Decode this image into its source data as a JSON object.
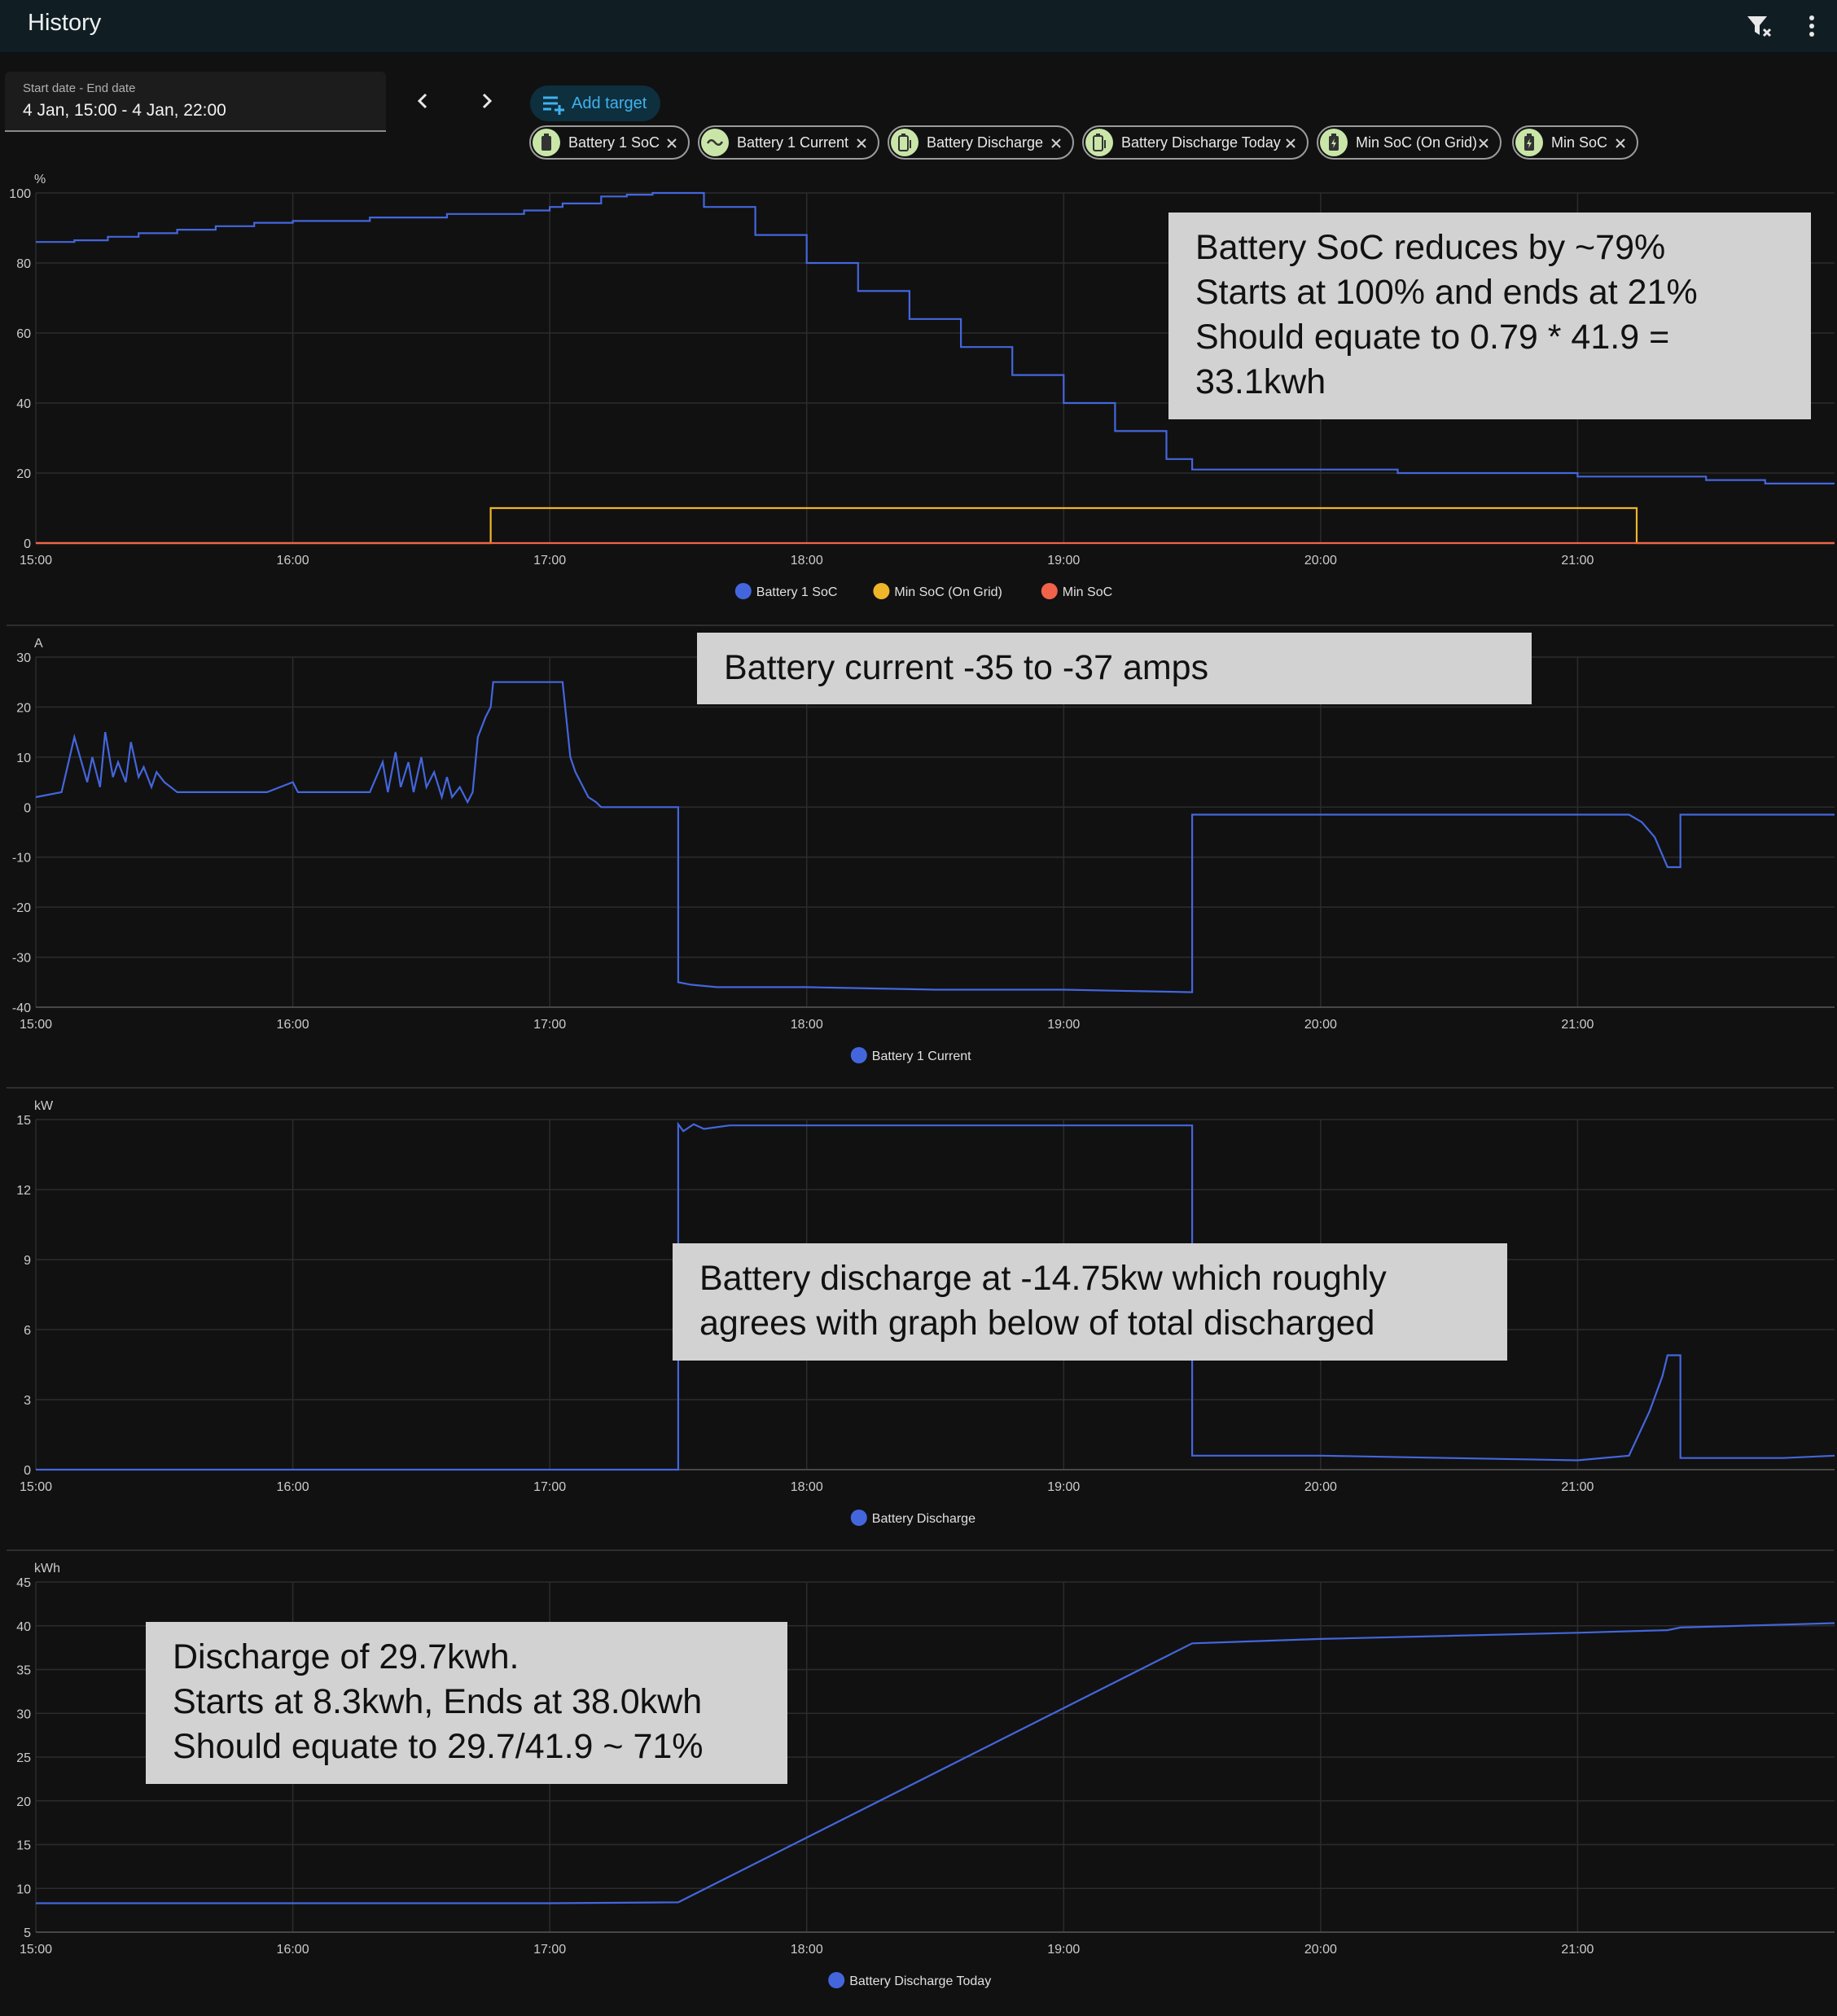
{
  "header": {
    "title": "History"
  },
  "date_picker": {
    "label": "Start date - End date",
    "value": "4 Jan, 15:00 - 4 Jan, 22:00"
  },
  "add_target": {
    "label": "Add target"
  },
  "targets": [
    {
      "label": "Battery 1 SoC",
      "icon": "battery-icon"
    },
    {
      "label": "Battery 1 Current",
      "icon": "current-wave-icon"
    },
    {
      "label": "Battery Discharge",
      "icon": "battery-discharge-icon"
    },
    {
      "label": "Battery Discharge Today",
      "icon": "battery-discharge-icon"
    },
    {
      "label": "Min SoC (On Grid)",
      "icon": "battery-charging-icon"
    },
    {
      "label": "Min SoC",
      "icon": "battery-charging-icon"
    }
  ],
  "colors": {
    "blue": "#4466dd",
    "yellow": "#f0b429",
    "red": "#f0634a",
    "grid": "#2c2c2c",
    "axis": "#cccccc"
  },
  "x_ticks": [
    "15:00",
    "16:00",
    "17:00",
    "18:00",
    "19:00",
    "20:00",
    "21:00"
  ],
  "notes": [
    "Battery SoC reduces by ~79%\nStarts at 100% and ends at 21%\nShould equate to 0.79 * 41.9 =\n33.1kwh",
    "Battery current  -35 to -37 amps",
    "Battery discharge at  -14.75kw which roughly\nagrees with graph below of total discharged",
    "Discharge of 29.7kwh.\nStarts at 8.3kwh, Ends at 38.0kwh\nShould equate to 29.7/41.9 ~ 71%"
  ],
  "chart_data": [
    {
      "type": "line",
      "unit": "%",
      "ylim": [
        0,
        100
      ],
      "yticks": [
        0,
        20,
        40,
        60,
        80,
        100
      ],
      "xlim": [
        15.0,
        22.0
      ],
      "series": [
        {
          "name": "Battery 1 SoC",
          "color": "#4466dd",
          "step": true,
          "x": [
            15.0,
            15.15,
            15.28,
            15.4,
            15.55,
            15.7,
            15.85,
            16.0,
            16.3,
            16.6,
            16.9,
            17.0,
            17.05,
            17.2,
            17.3,
            17.4,
            17.53,
            17.6,
            17.8,
            18.0,
            18.2,
            18.4,
            18.6,
            18.8,
            19.0,
            19.2,
            19.4,
            19.5,
            19.6,
            20.08,
            20.3,
            20.6,
            20.85,
            21.0,
            21.35,
            21.5,
            21.73,
            21.85,
            22.0
          ],
          "y": [
            86,
            86.5,
            87.5,
            88.5,
            89.5,
            90.5,
            91.5,
            92,
            93,
            94,
            95,
            96,
            97,
            99,
            99.5,
            100,
            100,
            96,
            88,
            80,
            72,
            64,
            56,
            48,
            40,
            32,
            24,
            21,
            21,
            21,
            20,
            20,
            20,
            19,
            19,
            18,
            17,
            17,
            17
          ]
        },
        {
          "name": "Min SoC (On Grid)",
          "color": "#f0b429",
          "step": true,
          "x": [
            15.0,
            16.77,
            16.77,
            17.79,
            17.79,
            21.23,
            21.23,
            22.0
          ],
          "y": [
            0,
            0,
            10,
            10,
            10,
            10,
            0,
            0
          ]
        },
        {
          "name": "Min SoC",
          "color": "#f0634a",
          "step": true,
          "x": [
            15.0,
            22.0
          ],
          "y": [
            0,
            0
          ]
        }
      ]
    },
    {
      "type": "line",
      "unit": "A",
      "ylim": [
        -40,
        30
      ],
      "yticks": [
        -40,
        -30,
        -20,
        -10,
        0,
        10,
        20,
        30
      ],
      "xlim": [
        15.0,
        22.0
      ],
      "series": [
        {
          "name": "Battery 1 Current",
          "color": "#4466dd",
          "x": [
            15.0,
            15.1,
            15.15,
            15.2,
            15.22,
            15.25,
            15.27,
            15.3,
            15.32,
            15.35,
            15.37,
            15.4,
            15.42,
            15.45,
            15.47,
            15.5,
            15.55,
            15.6,
            15.65,
            15.7,
            15.8,
            15.9,
            16.0,
            16.02,
            16.05,
            16.1,
            16.15,
            16.2,
            16.3,
            16.35,
            16.37,
            16.4,
            16.42,
            16.45,
            16.47,
            16.5,
            16.52,
            16.55,
            16.58,
            16.6,
            16.62,
            16.65,
            16.68,
            16.7,
            16.72,
            16.75,
            16.77,
            16.78,
            16.8,
            16.9,
            17.05,
            17.08,
            17.1,
            17.13,
            17.15,
            17.18,
            17.2,
            17.3,
            17.5,
            17.5,
            17.55,
            17.65,
            18.0,
            18.5,
            19.0,
            19.5,
            19.5,
            19.6,
            20.0,
            20.5,
            21.0,
            21.2,
            21.25,
            21.3,
            21.35,
            21.38,
            21.4,
            21.4,
            21.45,
            21.8,
            22.0
          ],
          "y": [
            2,
            3,
            14,
            5,
            10,
            4,
            15,
            6,
            9,
            5,
            13,
            6,
            8,
            4,
            7,
            5,
            3,
            3,
            3,
            3,
            3,
            3,
            5,
            3,
            3,
            3,
            3,
            3,
            3,
            9,
            3,
            11,
            4,
            9,
            3,
            10,
            4,
            7,
            2,
            6,
            2,
            4,
            1,
            3,
            14,
            18,
            20,
            25,
            25,
            25,
            25,
            10,
            7,
            4,
            2,
            1,
            0,
            0,
            0,
            -35,
            -35.5,
            -36,
            -36,
            -36.5,
            -36.5,
            -37,
            -1.5,
            -1.5,
            -1.5,
            -1.5,
            -1.5,
            -1.5,
            -3,
            -6,
            -12,
            -12,
            -12,
            -1.5,
            -1.5,
            -1.5,
            -1.5
          ]
        }
      ]
    },
    {
      "type": "line",
      "unit": "kW",
      "ylim": [
        0,
        15
      ],
      "yticks": [
        0,
        3,
        6,
        9,
        12,
        15
      ],
      "xlim": [
        15.0,
        22.0
      ],
      "series": [
        {
          "name": "Battery Discharge",
          "color": "#4466dd",
          "x": [
            15.0,
            17.5,
            17.5,
            17.52,
            17.56,
            17.6,
            17.7,
            17.8,
            17.9,
            18.0,
            18.5,
            19.0,
            19.4,
            19.5,
            19.5,
            19.6,
            20.0,
            20.5,
            21.0,
            21.2,
            21.28,
            21.33,
            21.35,
            21.4,
            21.4,
            21.45,
            21.8,
            22.0
          ],
          "y": [
            0,
            0,
            14.8,
            14.5,
            14.8,
            14.6,
            14.75,
            14.75,
            14.75,
            14.75,
            14.75,
            14.75,
            14.75,
            14.75,
            0.6,
            0.6,
            0.6,
            0.5,
            0.4,
            0.6,
            2.5,
            4.0,
            4.9,
            4.9,
            0.5,
            0.5,
            0.5,
            0.6
          ]
        }
      ]
    },
    {
      "type": "line",
      "unit": "kWh",
      "ylim": [
        5,
        45
      ],
      "yticks": [
        5,
        10,
        15,
        20,
        25,
        30,
        35,
        40,
        45
      ],
      "xlim": [
        15.0,
        22.0
      ],
      "series": [
        {
          "name": "Battery Discharge Today",
          "color": "#4466dd",
          "x": [
            15.0,
            17.0,
            17.5,
            19.5,
            20.0,
            21.0,
            21.35,
            21.4,
            22.0
          ],
          "y": [
            8.3,
            8.3,
            8.4,
            38.0,
            38.5,
            39.2,
            39.5,
            39.8,
            40.3
          ]
        }
      ]
    }
  ]
}
